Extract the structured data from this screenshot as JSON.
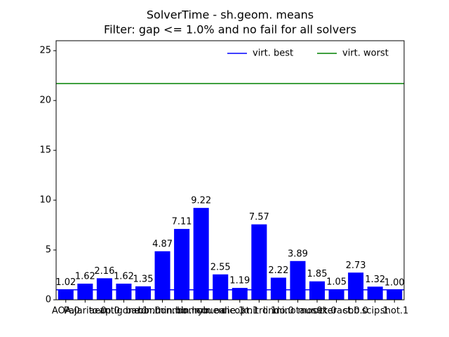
{
  "chart_data": {
    "type": "bar",
    "title": "SolverTime - sh.geom. means",
    "subtitle": "Filter: gap <= 1.0% and no fail for all solvers",
    "categories": [
      "AOA.0",
      "Pajarito.0",
      "aecp.0",
      "antigone.1",
      "baron.0",
      "bonmin.bb",
      "bonmin.hyb",
      "bonmin.oa",
      "couenne.1",
      "dicopt.1",
      "knitro.1",
      "lindo.0",
      "minotaur.0",
      "mosek.0",
      "octeract.0",
      "sbb.0",
      "scip.1",
      "shot.1"
    ],
    "values": [
      1.02,
      1.62,
      2.16,
      1.62,
      1.35,
      4.87,
      7.11,
      9.22,
      2.55,
      1.19,
      7.57,
      2.22,
      3.89,
      1.85,
      1.05,
      2.73,
      1.32,
      1.0
    ],
    "value_labels": [
      "1.02",
      "1.62",
      "2.16",
      "1.62",
      "1.35",
      "4.87",
      "7.11",
      "9.22",
      "2.55",
      "1.19",
      "7.57",
      "2.22",
      "3.89",
      "1.85",
      "1.05",
      "2.73",
      "1.32",
      "1.00"
    ],
    "color": "#0000ff",
    "ylim": [
      0,
      26
    ],
    "yticks": [
      0,
      5,
      10,
      15,
      20,
      25
    ],
    "reference_lines": [
      {
        "name": "virt. best",
        "color": "#0000ff",
        "value": 1.0
      },
      {
        "name": "virt. worst",
        "color": "#008000",
        "value": 21.7
      }
    ],
    "legend": "upper right",
    "grid": false
  }
}
